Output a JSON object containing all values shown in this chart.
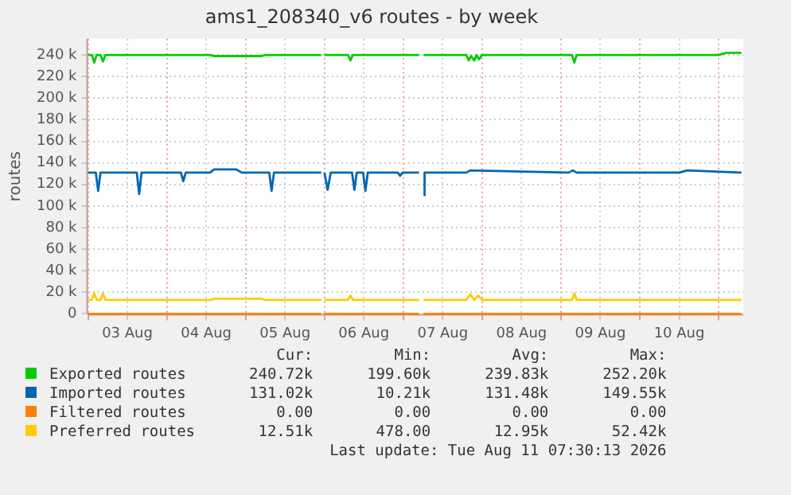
{
  "chart_data": {
    "type": "line",
    "title": "ams1_208340_v6 routes - by week",
    "ylabel": "routes",
    "xlim": [
      "2026-08-03T00:00",
      "2026-08-11T07:30"
    ],
    "ylim": [
      0,
      255000
    ],
    "xticks": [
      {
        "value": "2026-08-03T00:00",
        "label": null
      },
      {
        "value": "2026-08-03T12:00",
        "label": "03 Aug"
      },
      {
        "value": "2026-08-04T00:00",
        "label": null
      },
      {
        "value": "2026-08-04T12:00",
        "label": "04 Aug"
      },
      {
        "value": "2026-08-05T00:00",
        "label": null
      },
      {
        "value": "2026-08-05T12:00",
        "label": "05 Aug"
      },
      {
        "value": "2026-08-06T00:00",
        "label": null
      },
      {
        "value": "2026-08-06T12:00",
        "label": "06 Aug"
      },
      {
        "value": "2026-08-07T00:00",
        "label": null
      },
      {
        "value": "2026-08-07T12:00",
        "label": "07 Aug"
      },
      {
        "value": "2026-08-08T00:00",
        "label": null
      },
      {
        "value": "2026-08-08T12:00",
        "label": "08 Aug"
      },
      {
        "value": "2026-08-09T00:00",
        "label": null
      },
      {
        "value": "2026-08-09T12:00",
        "label": "09 Aug"
      },
      {
        "value": "2026-08-10T00:00",
        "label": null
      },
      {
        "value": "2026-08-10T12:00",
        "label": "10 Aug"
      },
      {
        "value": "2026-08-11T00:00",
        "label": null
      }
    ],
    "yticks": [
      0,
      {
        "value": 20000,
        "label": "20 k"
      },
      {
        "value": 40000,
        "label": "40 k"
      },
      {
        "value": 60000,
        "label": "60 k"
      },
      {
        "value": 80000,
        "label": "80 k"
      },
      {
        "value": 100000,
        "label": "100 k"
      },
      {
        "value": 120000,
        "label": "120 k"
      },
      {
        "value": 140000,
        "label": "140 k"
      },
      {
        "value": 160000,
        "label": "160 k"
      },
      {
        "value": 180000,
        "label": "180 k"
      },
      {
        "value": 200000,
        "label": "200 k"
      },
      {
        "value": 220000,
        "label": "220 k"
      },
      {
        "value": 240000,
        "label": "240 k"
      }
    ],
    "grid": true,
    "legend": "bottom",
    "marker": "none",
    "series": [
      {
        "name": "Exported routes",
        "color": "#00cc00",
        "x": [
          "2026-08-03T00:00",
          "2026-08-03T01:12",
          "2026-08-03T01:55",
          "2026-08-03T02:38",
          "2026-08-03T03:50",
          "2026-08-03T04:34",
          "2026-08-03T05:17",
          "2026-08-03T07:12",
          "2026-08-04T13:12",
          "2026-08-04T14:24",
          "2026-08-05T04:48",
          "2026-08-05T06:00",
          "2026-08-05T23:02",
          "2026-08-05T23:31",
          "2026-08-06T00:00",
          "2026-08-06T07:12",
          "2026-08-06T07:55",
          "2026-08-06T08:38",
          "2026-08-07T04:48",
          "2026-08-07T05:31",
          "2026-08-07T06:14",
          "2026-08-07T19:12",
          "2026-08-07T19:55",
          "2026-08-07T20:38",
          "2026-08-07T21:36",
          "2026-08-07T22:19",
          "2026-08-07T23:02",
          "2026-08-08T00:00",
          "2026-08-09T03:22",
          "2026-08-09T04:05",
          "2026-08-09T04:48",
          "2026-08-10T07:12",
          "2026-08-10T14:24",
          "2026-08-11T00:00",
          "2026-08-11T02:24",
          "2026-08-11T06:58"
        ],
        "values": [
          240000,
          240000,
          233000,
          240000,
          240000,
          234000,
          240000,
          240000,
          240000,
          239000,
          239000,
          240000,
          240000,
          null,
          240000,
          240000,
          235000,
          240000,
          240000,
          null,
          240000,
          240000,
          235000,
          239000,
          235000,
          240000,
          236000,
          240000,
          240000,
          233000,
          240000,
          240000,
          240000,
          240000,
          242000,
          242000
        ]
      },
      {
        "name": "Imported routes",
        "color": "#0066b3",
        "x": [
          "2026-08-03T00:00",
          "2026-08-03T02:24",
          "2026-08-03T03:07",
          "2026-08-03T03:50",
          "2026-08-03T14:53",
          "2026-08-03T15:36",
          "2026-08-03T16:19",
          "2026-08-04T04:19",
          "2026-08-04T05:02",
          "2026-08-04T05:46",
          "2026-08-04T13:12",
          "2026-08-04T14:24",
          "2026-08-04T21:07",
          "2026-08-04T22:48",
          "2026-08-05T07:12",
          "2026-08-05T07:55",
          "2026-08-05T08:38",
          "2026-08-05T23:02",
          "2026-08-05T23:31",
          "2026-08-06T00:00",
          "2026-08-06T00:58",
          "2026-08-06T01:55",
          "2026-08-06T08:24",
          "2026-08-06T09:07",
          "2026-08-06T09:50",
          "2026-08-06T11:46",
          "2026-08-06T12:29",
          "2026-08-06T13:12",
          "2026-08-06T22:19",
          "2026-08-06T23:02",
          "2026-08-06T23:46",
          "2026-08-07T04:48",
          "2026-08-07T05:31",
          "2026-08-07T06:14",
          "2026-08-07T06:29",
          "2026-08-07T06:58",
          "2026-08-07T19:12",
          "2026-08-07T20:24",
          "2026-08-09T02:24",
          "2026-08-09T03:36",
          "2026-08-09T04:48",
          "2026-08-10T12:00",
          "2026-08-10T14:24",
          "2026-08-11T06:58"
        ],
        "values": [
          131000,
          131000,
          114000,
          131000,
          131000,
          111000,
          131000,
          131000,
          123000,
          131000,
          131000,
          134000,
          134000,
          131000,
          131000,
          114000,
          131000,
          131000,
          null,
          131000,
          115000,
          131000,
          131000,
          115000,
          131000,
          131000,
          114000,
          131000,
          131000,
          128000,
          131000,
          131000,
          null,
          110000,
          131000,
          131000,
          131000,
          133000,
          131000,
          133000,
          131000,
          131000,
          133000,
          131000
        ]
      },
      {
        "name": "Filtered routes",
        "color": "#ff8000",
        "x": [
          "2026-08-03T00:00",
          "2026-08-05T23:02",
          "2026-08-05T23:31",
          "2026-08-06T00:00",
          "2026-08-07T04:48",
          "2026-08-07T05:31",
          "2026-08-07T06:14",
          "2026-08-11T06:58"
        ],
        "values": [
          0,
          0,
          null,
          0,
          0,
          null,
          0,
          0
        ]
      },
      {
        "name": "Preferred routes",
        "color": "#ffcc00",
        "x": [
          "2026-08-03T00:00",
          "2026-08-03T01:12",
          "2026-08-03T01:55",
          "2026-08-03T02:38",
          "2026-08-03T03:50",
          "2026-08-03T04:34",
          "2026-08-03T05:17",
          "2026-08-03T07:12",
          "2026-08-04T13:12",
          "2026-08-04T14:24",
          "2026-08-05T04:48",
          "2026-08-05T06:00",
          "2026-08-05T23:02",
          "2026-08-05T23:31",
          "2026-08-06T00:00",
          "2026-08-06T07:12",
          "2026-08-06T07:55",
          "2026-08-06T08:38",
          "2026-08-07T04:48",
          "2026-08-07T05:31",
          "2026-08-07T06:14",
          "2026-08-07T19:12",
          "2026-08-07T20:24",
          "2026-08-07T21:36",
          "2026-08-07T22:48",
          "2026-08-08T00:00",
          "2026-08-09T03:22",
          "2026-08-09T04:05",
          "2026-08-09T04:48",
          "2026-08-10T07:12",
          "2026-08-10T14:24",
          "2026-08-11T06:58"
        ],
        "values": [
          13000,
          13000,
          19000,
          13000,
          13000,
          19000,
          13000,
          13000,
          13000,
          14000,
          14000,
          13000,
          13000,
          null,
          13000,
          13000,
          17000,
          13000,
          13000,
          null,
          13000,
          13000,
          18000,
          13000,
          17000,
          13000,
          13000,
          19000,
          13000,
          13000,
          13000,
          13000
        ]
      }
    ],
    "annotations": [
      "Cur:",
      "Min:",
      "Avg:",
      "Max:",
      "240.72k",
      "199.60k",
      "239.83k",
      "252.20k",
      "131.02k",
      "10.21k",
      "131.48k",
      "149.55k",
      "0.00",
      "0.00",
      "0.00",
      "0.00",
      "12.51k",
      "478.00",
      "12.95k",
      "52.42k",
      "Last update: Tue Aug 11 07:30:13 2026"
    ]
  }
}
